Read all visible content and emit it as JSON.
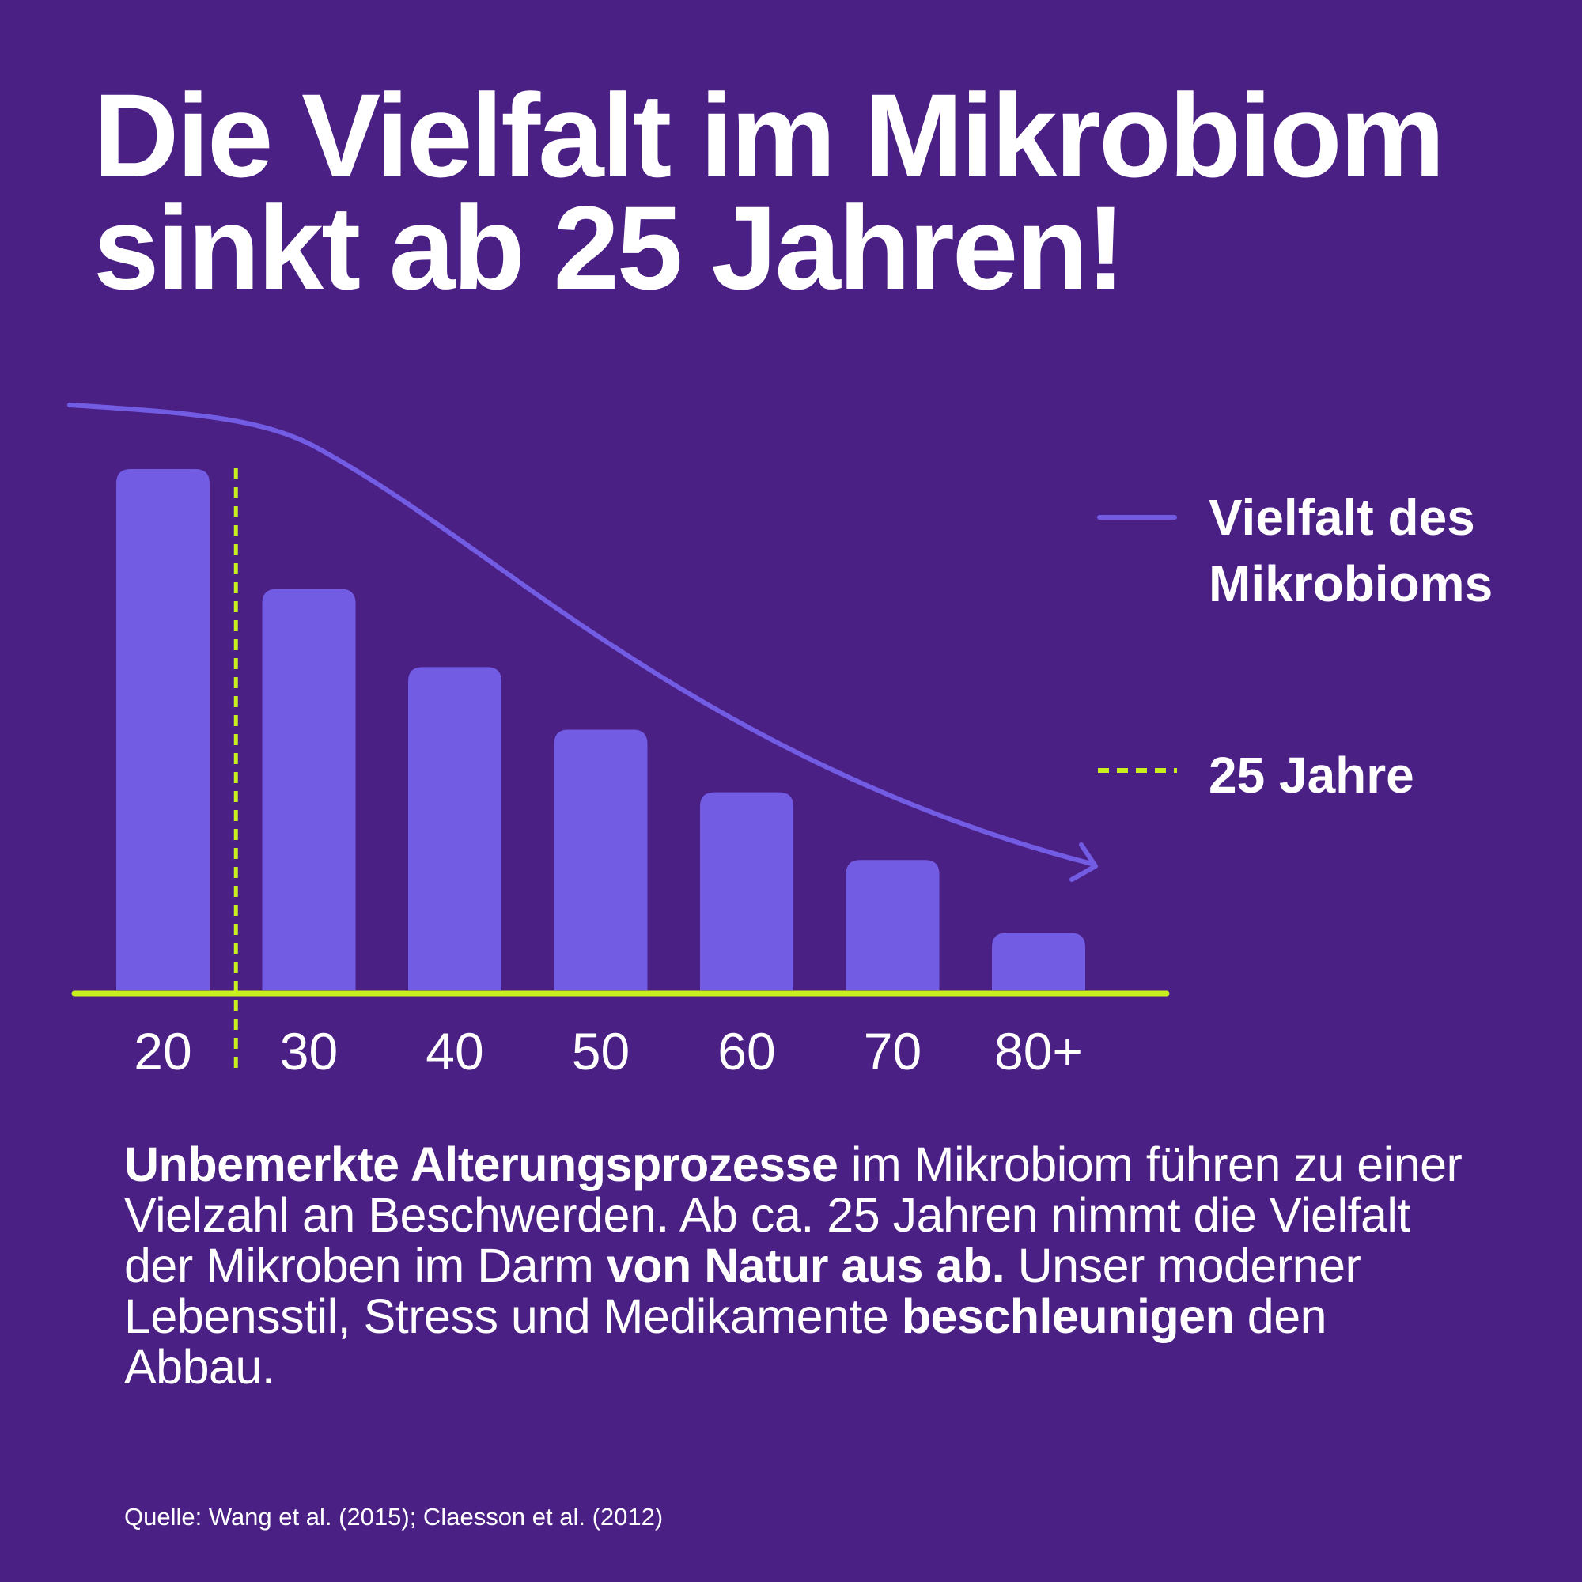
{
  "title": {
    "line1": "Die Vielfalt im Mikrobiom",
    "line2": "sinkt ab 25 Jahren!"
  },
  "colors": {
    "background": "#4b2085",
    "bar": "#735ce4",
    "curve": "#735ce4",
    "axis": "#c8f01e",
    "marker": "#c8f01e",
    "text": "#ffffff"
  },
  "chart_data": {
    "type": "bar",
    "categories": [
      "20",
      "30",
      "40",
      "50",
      "60",
      "70",
      "80+"
    ],
    "values": [
      100,
      77,
      62,
      50,
      38,
      25,
      11
    ],
    "ylim": [
      0,
      100
    ],
    "grid": false,
    "reference_line": {
      "x": 25,
      "label": "25 Jahre",
      "style": "dashed"
    },
    "trend_curve": {
      "label": "Vielfalt des Mikrobioms",
      "direction": "decreasing",
      "arrow": true
    },
    "legend": {
      "position": "right",
      "entries": [
        {
          "lines": [
            "Vielfalt des",
            "Mikrobioms"
          ],
          "style": "line"
        },
        {
          "lines": [
            "25 Jahre"
          ],
          "style": "dashed"
        }
      ]
    }
  },
  "description": {
    "b1": "Unbemerkte Alterungsprozesse",
    "t1": " im Mikrobiom führen zu einer Vielzahl an Beschwerden. Ab ca. 25 Jahren nimmt die Vielfalt der Mikroben im Darm ",
    "b2": "von Natur aus ab.",
    "t2": " Unser moderner Lebensstil, Stress und Medikamente ",
    "b3": "beschleunigen",
    "t3": " den Abbau."
  },
  "source": "Quelle: Wang et al. (2015); Claesson et al. (2012)"
}
